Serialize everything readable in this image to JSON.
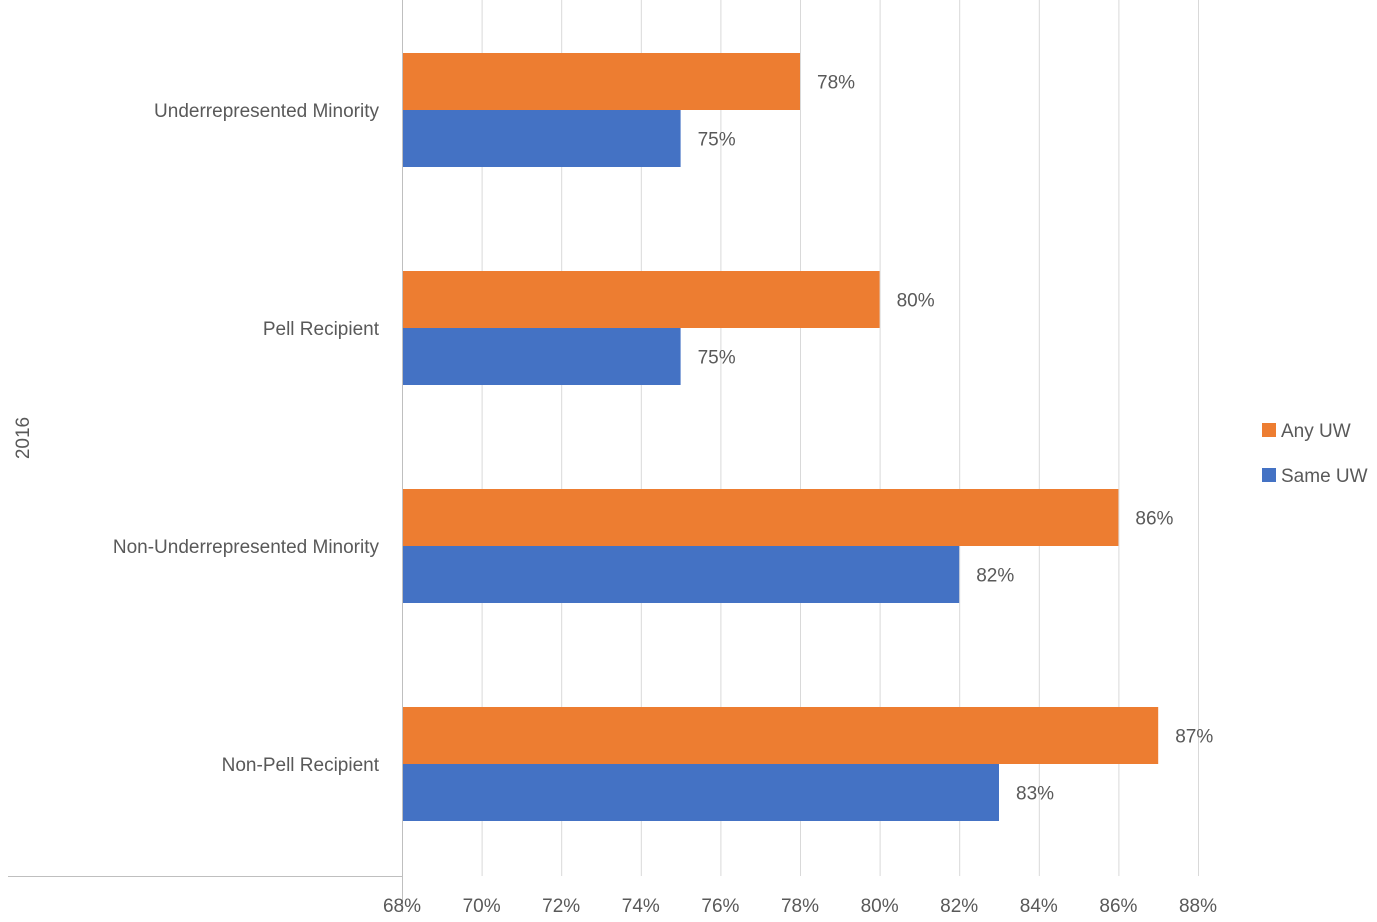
{
  "chart_data": {
    "type": "bar",
    "orientation": "horizontal",
    "group_label": "2016",
    "categories": [
      "Underrepresented Minority",
      "Pell Recipient",
      "Non-Underrepresented Minority",
      "Non-Pell Recipient"
    ],
    "series": [
      {
        "name": "Any UW",
        "color": "#ED7D31",
        "values": [
          78,
          80,
          86,
          87
        ],
        "labels": [
          "78%",
          "80%",
          "86%",
          "87%"
        ]
      },
      {
        "name": "Same UW",
        "color": "#4472C4",
        "values": [
          75,
          75,
          82,
          83
        ],
        "labels": [
          "75%",
          "75%",
          "82%",
          "83%"
        ]
      }
    ],
    "xlim": [
      68,
      88
    ],
    "xticks": [
      68,
      70,
      72,
      74,
      76,
      78,
      80,
      82,
      84,
      86,
      88
    ],
    "xtick_labels": [
      "68%",
      "70%",
      "72%",
      "74%",
      "76%",
      "78%",
      "80%",
      "82%",
      "84%",
      "86%",
      "88%"
    ],
    "grid": true,
    "legend_position": "right",
    "gridline_color": "#D9D9D9",
    "axis_line_color": "#BFBFBF",
    "text_color": "#595959"
  }
}
